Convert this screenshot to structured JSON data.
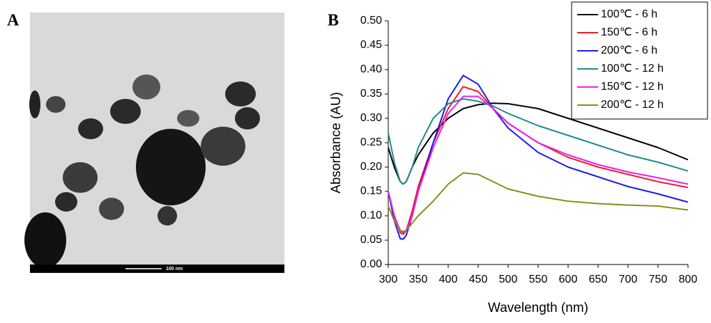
{
  "panel_labels": [
    "A",
    "B"
  ],
  "image": {
    "scale_bar": "100 nm"
  },
  "chart_data": {
    "type": "line",
    "x_label": "Wavelength (nm)",
    "y_label": "Absorbance (AU)",
    "x": [
      300,
      310,
      320,
      325,
      330,
      340,
      350,
      375,
      400,
      425,
      450,
      475,
      500,
      550,
      600,
      650,
      700,
      750,
      800
    ],
    "series": [
      {
        "name": "100℃ - 6 h",
        "color": "#000000",
        "values": [
          0.24,
          0.2,
          0.17,
          0.165,
          0.17,
          0.2,
          0.225,
          0.27,
          0.3,
          0.32,
          0.328,
          0.331,
          0.33,
          0.32,
          0.3,
          0.28,
          0.26,
          0.24,
          0.215
        ]
      },
      {
        "name": "150℃ - 6 h",
        "color": "#ee1c24",
        "values": [
          0.15,
          0.1,
          0.065,
          0.062,
          0.07,
          0.11,
          0.16,
          0.25,
          0.32,
          0.365,
          0.355,
          0.32,
          0.29,
          0.25,
          0.22,
          0.2,
          0.185,
          0.17,
          0.158
        ]
      },
      {
        "name": "200℃ - 6 h",
        "color": "#1a1aee",
        "values": [
          0.15,
          0.09,
          0.053,
          0.052,
          0.06,
          0.1,
          0.15,
          0.25,
          0.34,
          0.388,
          0.37,
          0.32,
          0.28,
          0.23,
          0.2,
          0.18,
          0.16,
          0.145,
          0.128
        ]
      },
      {
        "name": "100℃ - 12 h",
        "color": "#1b8c8c",
        "values": [
          0.27,
          0.21,
          0.17,
          0.165,
          0.17,
          0.2,
          0.24,
          0.3,
          0.33,
          0.34,
          0.335,
          0.325,
          0.31,
          0.285,
          0.265,
          0.245,
          0.225,
          0.21,
          0.192
        ]
      },
      {
        "name": "150℃ - 12 h",
        "color": "#ee1cee",
        "values": [
          0.15,
          0.1,
          0.07,
          0.065,
          0.07,
          0.1,
          0.15,
          0.24,
          0.31,
          0.345,
          0.345,
          0.32,
          0.29,
          0.25,
          0.225,
          0.205,
          0.19,
          0.178,
          0.165
        ]
      },
      {
        "name": "200℃ - 12 h",
        "color": "#8c8c1a",
        "values": [
          0.12,
          0.09,
          0.07,
          0.068,
          0.07,
          0.085,
          0.1,
          0.13,
          0.165,
          0.188,
          0.185,
          0.17,
          0.155,
          0.14,
          0.13,
          0.125,
          0.122,
          0.12,
          0.112
        ]
      }
    ],
    "xlim": [
      300,
      800
    ],
    "xticks": [
      300,
      350,
      400,
      450,
      500,
      550,
      600,
      650,
      700,
      750,
      800
    ],
    "ylim": [
      0,
      0.5
    ],
    "yticks": [
      {
        "value": 0,
        "label": "0.00"
      },
      {
        "value": 0.05,
        "label": "0.05"
      },
      {
        "value": 0.1,
        "label": "0.10"
      },
      {
        "value": 0.15,
        "label": "0.15"
      },
      {
        "value": 0.2,
        "label": "0.20"
      },
      {
        "value": 0.25,
        "label": "0.25"
      },
      {
        "value": 0.3,
        "label": "0.30"
      },
      {
        "value": 0.35,
        "label": "0.35"
      },
      {
        "value": 0.4,
        "label": "0.40"
      },
      {
        "value": 0.45,
        "label": "0.45"
      },
      {
        "value": 0.5,
        "label": "0.50"
      }
    ],
    "legend": "upper right"
  }
}
